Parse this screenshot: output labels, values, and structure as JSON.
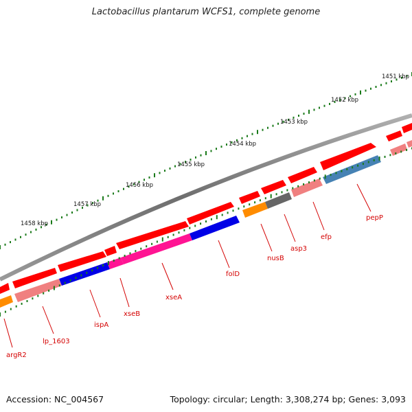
{
  "title": "Lactobacillus plantarum WCFS1, complete genome",
  "footer": {
    "accession": "Accession: NC_004567",
    "info": "Topology: circular; Length: 3,308,274 bp; Genes: 3,093"
  },
  "colors": {
    "backbone": "#808080",
    "ticks": "#1a7a1a",
    "gene_forward": "#ff0000",
    "gene_reverse": "#f08080",
    "label": "#d40000",
    "blue": "#0000e6",
    "magenta": "#ff1493",
    "orange": "#ff8c00",
    "dark_gray": "#666666",
    "steel_blue": "#4682b4"
  },
  "scale_labels": [
    "1451 kbp",
    "1452 kbp",
    "1453 kbp",
    "1454 kbp",
    "1455 kbp",
    "1456 kbp",
    "1457 kbp",
    "1458 kbp"
  ],
  "gene_labels": [
    "argR2",
    "lp_1603",
    "ispA",
    "xseB",
    "xseA",
    "folD",
    "nusB",
    "asp3",
    "efp",
    "pepP"
  ]
}
